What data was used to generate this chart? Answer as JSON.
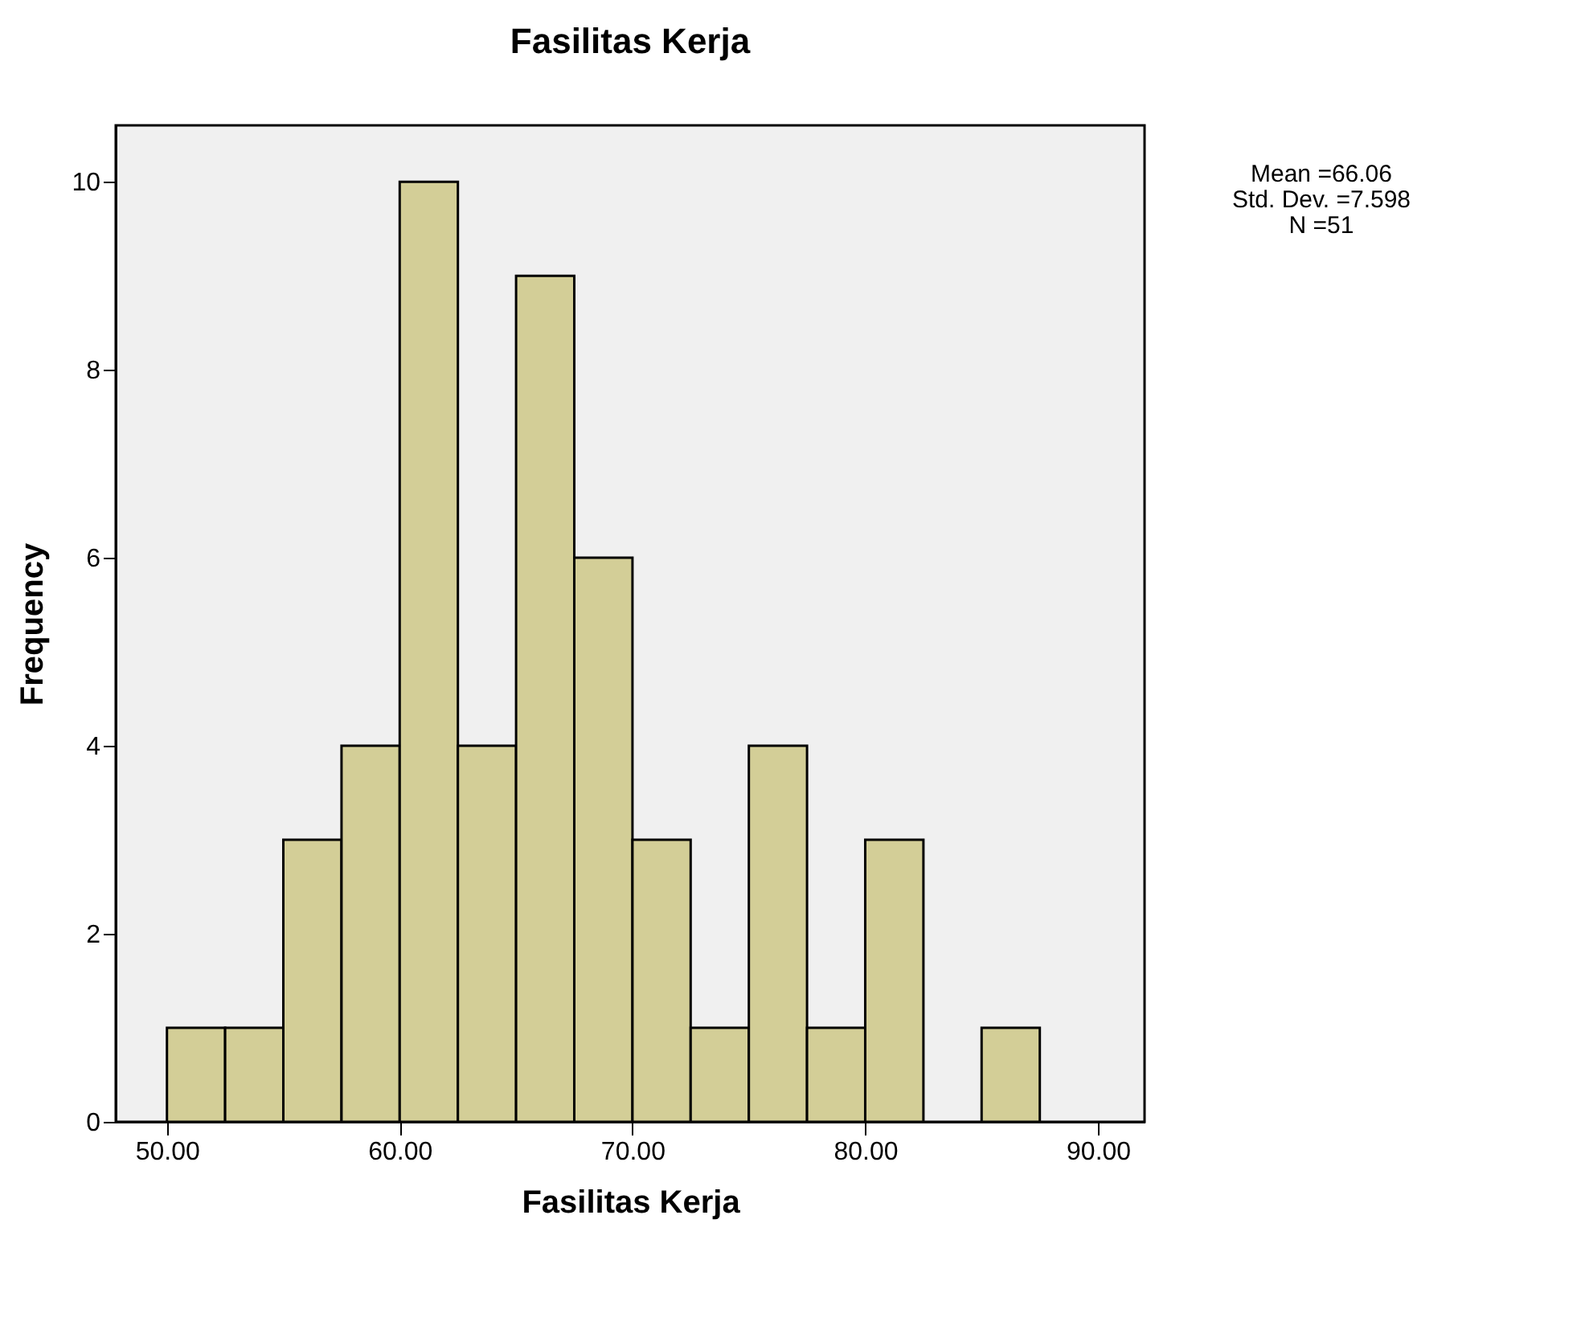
{
  "chart_data": {
    "type": "histogram",
    "title": "Fasilitas Kerja",
    "xlabel": "Fasilitas Kerja",
    "ylabel": "Frequency",
    "bins": [
      50,
      52.5,
      55,
      57.5,
      60,
      62.5,
      65,
      67.5,
      70,
      72.5,
      75,
      77.5,
      80,
      82.5,
      85,
      87.5
    ],
    "values": [
      1,
      1,
      3,
      4,
      10,
      4,
      9,
      6,
      3,
      1,
      4,
      1,
      3,
      0,
      1
    ],
    "color": "#d3ce97",
    "xlim": [
      47.8,
      92.0
    ],
    "xticks": [
      {
        "value": 50,
        "label": "50.00"
      },
      {
        "value": 60,
        "label": "60.00"
      },
      {
        "value": 70,
        "label": "70.00"
      },
      {
        "value": 80,
        "label": "80.00"
      },
      {
        "value": 90,
        "label": "90.00"
      }
    ],
    "ylim": [
      0,
      10.6
    ],
    "yticks": [
      0,
      2,
      4,
      6,
      8,
      10
    ],
    "grid": false,
    "annotations": [
      "Mean =66.06",
      "Std. Dev. =7.598",
      "N =51"
    ]
  }
}
